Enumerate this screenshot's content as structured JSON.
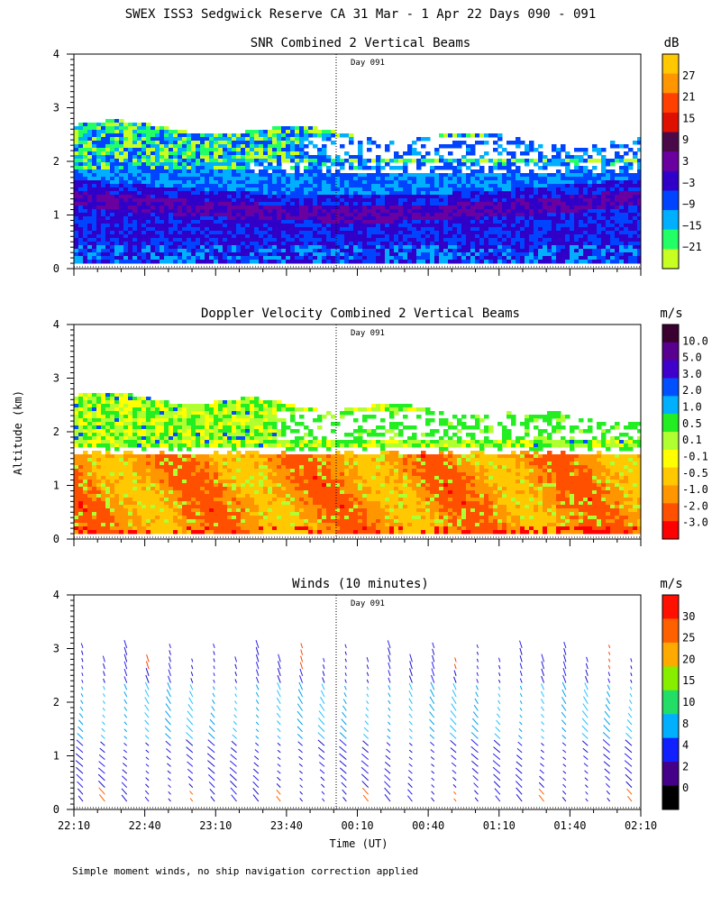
{
  "figure_title": "SWEX ISS3 Sedgwick Reserve CA  31 Mar -  1 Apr 22 Days 090 - 091",
  "ylabel": "Altitude (km)",
  "xlabel": "Time (UT)",
  "day_marker_label": "Day 091",
  "footnote": "Simple moment winds, no ship navigation correction applied",
  "x_ticks": [
    "22:10",
    "22:40",
    "23:10",
    "23:40",
    "00:10",
    "00:40",
    "01:10",
    "01:40",
    "02:10"
  ],
  "chart_data": [
    {
      "type": "heatmap",
      "title": "SNR Combined 2 Vertical Beams",
      "units": "dB",
      "ylabel": "Altitude (km)",
      "ylim": [
        0,
        4
      ],
      "y_ticks": [
        "0",
        "1",
        "2",
        "3",
        "4"
      ],
      "x_ticks": [
        "22:10",
        "22:40",
        "23:10",
        "23:40",
        "00:10",
        "00:40",
        "01:10",
        "01:40",
        "02:10"
      ],
      "colorbar_labels": [
        "27",
        "21",
        "15",
        "9",
        "3",
        "−3",
        "−9",
        "−15",
        "−21"
      ],
      "colorbar_colors": [
        "#ffc800",
        "#ff9600",
        "#ff4000",
        "#e01000",
        "#4a0a4a",
        "#6a00a0",
        "#3000c8",
        "#0044ff",
        "#00b0ff",
        "#22ff66",
        "#c8ff22"
      ],
      "annotation": "Day 091"
    },
    {
      "type": "heatmap",
      "title": "Doppler Velocity Combined 2 Vertical Beams",
      "units": "m/s",
      "ylabel": "Altitude (km)",
      "ylim": [
        0,
        4
      ],
      "y_ticks": [
        "0",
        "1",
        "2",
        "3",
        "4"
      ],
      "x_ticks": [
        "22:10",
        "22:40",
        "23:10",
        "23:40",
        "00:10",
        "00:40",
        "01:10",
        "01:40",
        "02:10"
      ],
      "colorbar_labels": [
        "10.0",
        "5.0",
        "3.0",
        "2.0",
        "1.0",
        "0.5",
        "0.1",
        "-0.1",
        "-0.5",
        "-1.0",
        "-2.0",
        "-3.0"
      ],
      "colorbar_colors": [
        "#3a0030",
        "#5a0090",
        "#4000cc",
        "#0050ff",
        "#00b0ff",
        "#22ee22",
        "#b0ff30",
        "#ffff00",
        "#ffc800",
        "#ff9600",
        "#ff5000",
        "#ff0000"
      ],
      "annotation": "Day 091"
    },
    {
      "type": "wind_barbs",
      "title": "Winds (10 minutes)",
      "units": "m/s",
      "ylabel": "Altitude (km)",
      "ylim": [
        0,
        4
      ],
      "y_ticks": [
        "0",
        "1",
        "2",
        "3",
        "4"
      ],
      "x_ticks": [
        "22:10",
        "22:40",
        "23:10",
        "23:40",
        "00:10",
        "00:40",
        "01:10",
        "01:40",
        "02:10"
      ],
      "colorbar_labels": [
        "30",
        "25",
        "20",
        "15",
        "10",
        "8",
        "4",
        "2",
        "0"
      ],
      "colorbar_colors": [
        "#ff1000",
        "#ff6000",
        "#ffaa00",
        "#88ee00",
        "#22dd66",
        "#00b0ff",
        "#1020ff",
        "#440088",
        "#000000"
      ],
      "annotation": "Day 091"
    }
  ]
}
